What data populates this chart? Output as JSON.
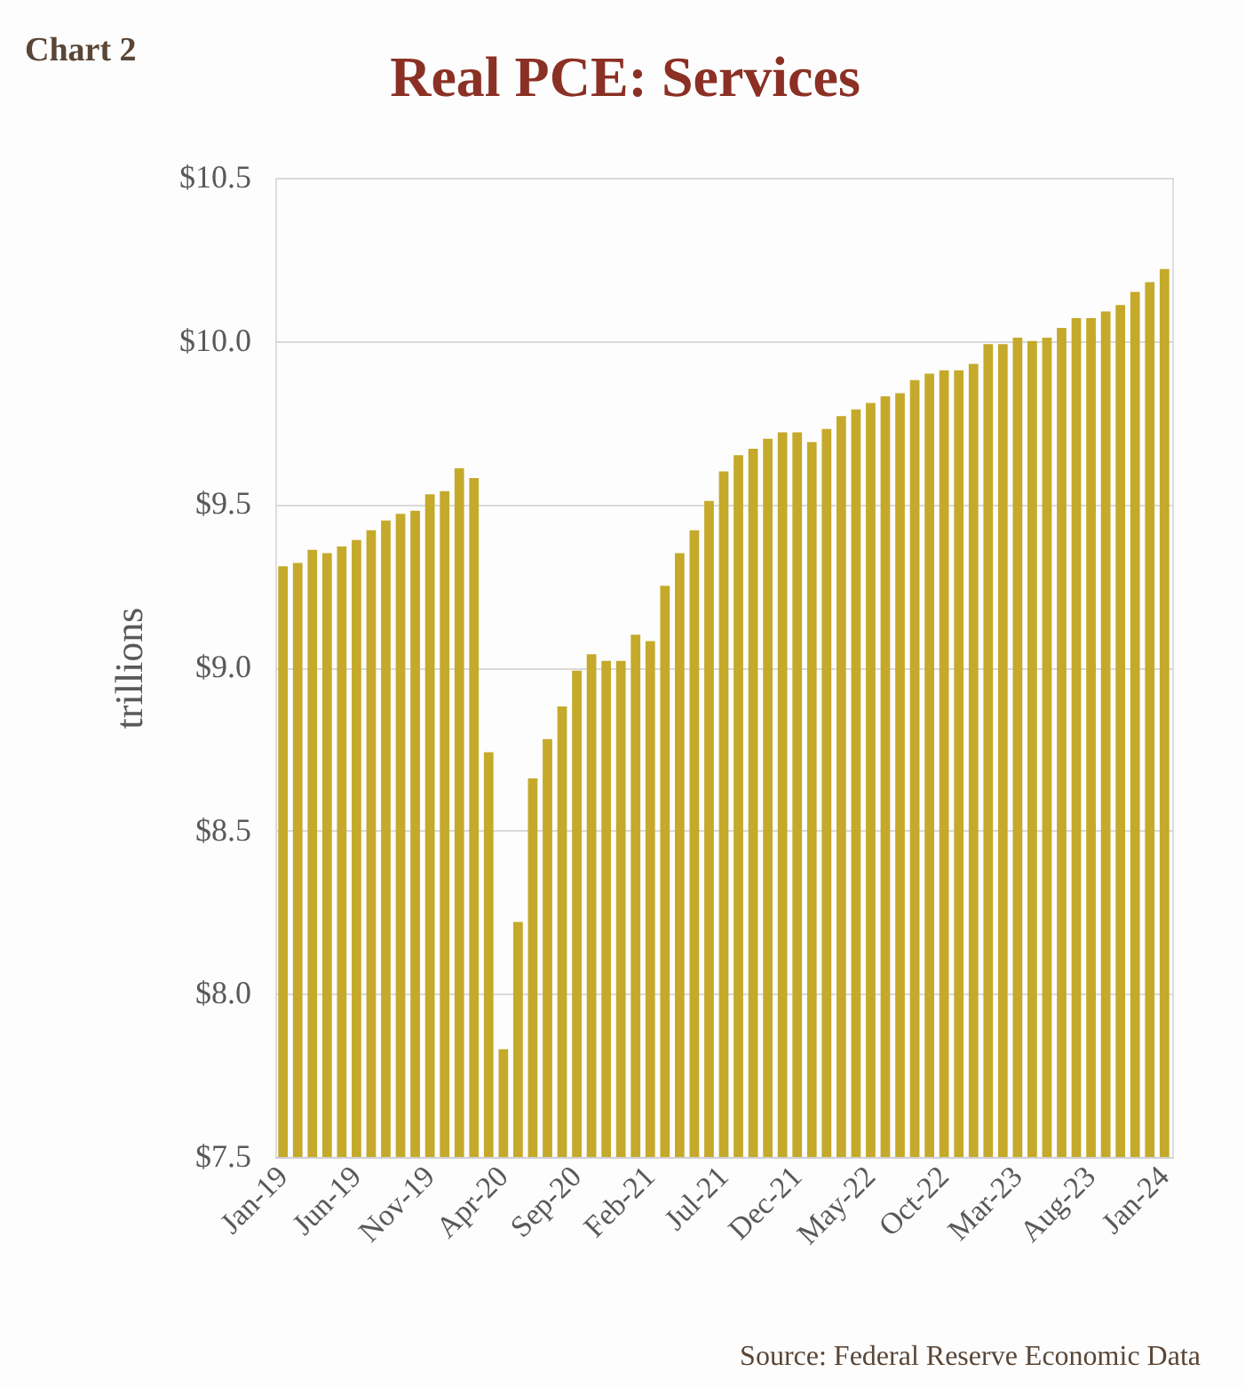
{
  "chart_data": {
    "type": "bar",
    "title": "Real PCE: Services",
    "ylabel": "trillions",
    "annotations": [
      "Chart 2",
      "Source: Federal Reserve Economic Data"
    ],
    "categories": [
      "Jan-19",
      null,
      null,
      null,
      null,
      "Jun-19",
      null,
      null,
      null,
      null,
      "Nov-19",
      null,
      null,
      null,
      null,
      "Apr-20",
      null,
      null,
      null,
      null,
      "Sep-20",
      null,
      null,
      null,
      null,
      "Feb-21",
      null,
      null,
      null,
      null,
      "Jul-21",
      null,
      null,
      null,
      null,
      "Dec-21",
      null,
      null,
      null,
      null,
      "May-22",
      null,
      null,
      null,
      null,
      "Oct-22",
      null,
      null,
      null,
      null,
      "Mar-23",
      null,
      null,
      null,
      null,
      "Aug-23",
      null,
      null,
      null,
      null,
      "Jan-24"
    ],
    "values": [
      9.31,
      9.32,
      9.36,
      9.35,
      9.37,
      9.39,
      9.42,
      9.45,
      9.47,
      9.48,
      9.53,
      9.54,
      9.61,
      9.58,
      8.74,
      7.83,
      8.22,
      8.66,
      8.78,
      8.88,
      8.99,
      9.04,
      9.02,
      9.02,
      9.1,
      9.08,
      9.25,
      9.35,
      9.42,
      9.51,
      9.6,
      9.65,
      9.67,
      9.7,
      9.72,
      9.72,
      9.69,
      9.73,
      9.77,
      9.79,
      9.81,
      9.83,
      9.84,
      9.88,
      9.9,
      9.91,
      9.91,
      9.93,
      9.99,
      9.99,
      10.01,
      10.0,
      10.01,
      10.04,
      10.07,
      10.07,
      10.09,
      10.11,
      10.15,
      10.18,
      10.22
    ],
    "color": "#c5a92b",
    "ylim": [
      7.5,
      10.5
    ],
    "yticks": [
      {
        "value": 7.5,
        "label": "$7.5"
      },
      {
        "value": 8.0,
        "label": "$8.0"
      },
      {
        "value": 8.5,
        "label": "$8.5"
      },
      {
        "value": 9.0,
        "label": "$9.0"
      },
      {
        "value": 9.5,
        "label": "$9.5"
      },
      {
        "value": 10.0,
        "label": "$10.0"
      },
      {
        "value": 10.5,
        "label": "$10.5"
      }
    ],
    "grid": "y"
  }
}
